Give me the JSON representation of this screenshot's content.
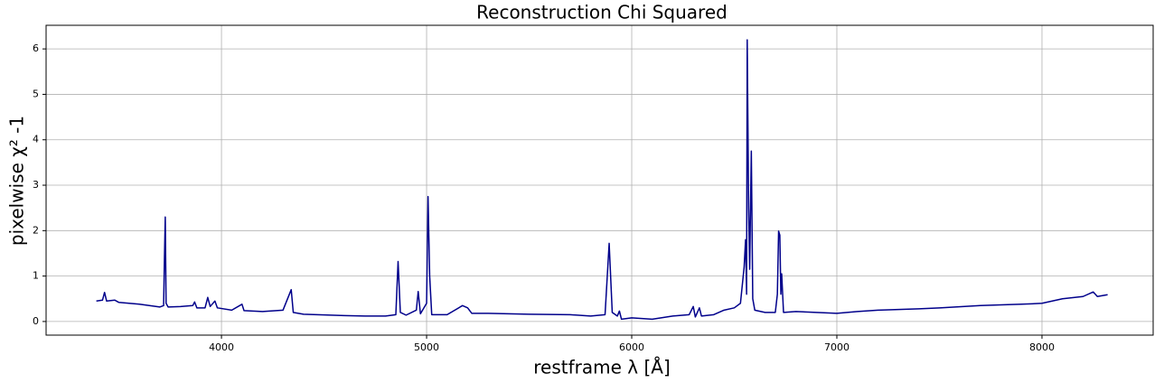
{
  "chart_data": {
    "type": "line",
    "title": "Reconstruction Chi Squared",
    "xlabel": "restframe λ [Å]",
    "ylabel": "pixelwise χ² -1",
    "x": [
      3390,
      3420,
      3430,
      3440,
      3480,
      3500,
      3600,
      3700,
      3718,
      3722,
      3726,
      3730,
      3740,
      3800,
      3860,
      3869,
      3880,
      3920,
      3933,
      3945,
      3968,
      3980,
      4050,
      4100,
      4110,
      4200,
      4300,
      4340,
      4350,
      4400,
      4600,
      4700,
      4800,
      4850,
      4861,
      4872,
      4900,
      4950,
      4959,
      4970,
      5000,
      5007,
      5015,
      5025,
      5100,
      5175,
      5200,
      5220,
      5300,
      5500,
      5700,
      5800,
      5870,
      5890,
      5905,
      5930,
      5940,
      5950,
      6000,
      6100,
      6200,
      6280,
      6300,
      6310,
      6330,
      6340,
      6400,
      6450,
      6500,
      6530,
      6548,
      6555,
      6560,
      6563,
      6570,
      6575,
      6583,
      6590,
      6600,
      6650,
      6700,
      6710,
      6716,
      6722,
      6727,
      6731,
      6740,
      6800,
      6900,
      7000,
      7100,
      7200,
      7400,
      7500,
      7700,
      7900,
      8000,
      8100,
      8200,
      8250,
      8270,
      8320
    ],
    "series": [
      {
        "color": "#00008b",
        "values": [
          0.45,
          0.47,
          0.64,
          0.45,
          0.47,
          0.42,
          0.38,
          0.32,
          0.35,
          1.4,
          2.3,
          0.4,
          0.32,
          0.33,
          0.35,
          0.43,
          0.3,
          0.3,
          0.53,
          0.33,
          0.45,
          0.3,
          0.25,
          0.38,
          0.24,
          0.22,
          0.25,
          0.7,
          0.2,
          0.16,
          0.13,
          0.12,
          0.12,
          0.15,
          1.32,
          0.2,
          0.14,
          0.25,
          0.66,
          0.17,
          0.4,
          2.75,
          1.0,
          0.15,
          0.15,
          0.35,
          0.3,
          0.18,
          0.18,
          0.16,
          0.15,
          0.12,
          0.15,
          1.72,
          0.2,
          0.12,
          0.23,
          0.05,
          0.08,
          0.05,
          0.12,
          0.15,
          0.33,
          0.1,
          0.3,
          0.12,
          0.15,
          0.25,
          0.3,
          0.4,
          1.2,
          1.8,
          0.6,
          6.2,
          2.5,
          1.15,
          3.75,
          0.5,
          0.25,
          0.2,
          0.2,
          0.6,
          1.99,
          1.9,
          0.6,
          1.05,
          0.2,
          0.22,
          0.2,
          0.18,
          0.22,
          0.25,
          0.28,
          0.3,
          0.35,
          0.38,
          0.4,
          0.5,
          0.55,
          0.65,
          0.55,
          0.59
        ]
      }
    ],
    "xlim": [
      3145,
      8542
    ],
    "ylim": [
      -0.3,
      6.52
    ],
    "xticks": [
      4000,
      5000,
      6000,
      7000,
      8000
    ],
    "yticks": [
      0,
      1,
      2,
      3,
      4,
      5,
      6
    ],
    "grid": true
  }
}
